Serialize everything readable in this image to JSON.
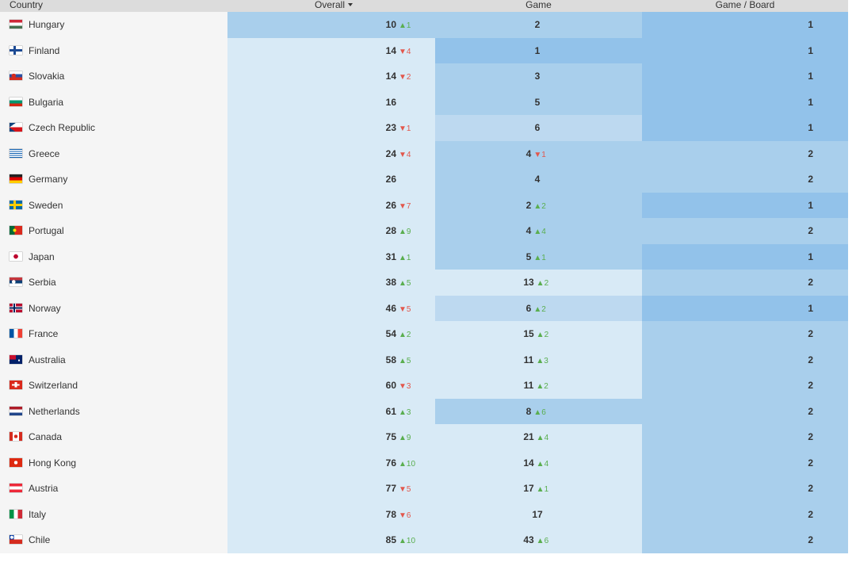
{
  "header": {
    "country": "Country",
    "overall": "Overall",
    "game": "Game",
    "board": "Game / Board"
  },
  "colors": {
    "up": "#5aae4f",
    "down": "#e2574c",
    "tier1": "#d8eaf6",
    "tier2": "#bdd9f0",
    "tier3": "#a9cfec",
    "tier4": "#92c2ea"
  },
  "rows": [
    {
      "country": "Hungary",
      "flag": "hungary-flag-icon",
      "overall": "10",
      "overall_delta": "▲1",
      "overall_dir": "up",
      "game": "2",
      "game_delta": "",
      "game_dir": "",
      "board": "1"
    },
    {
      "country": "Finland",
      "flag": "finland-flag-icon",
      "overall": "14",
      "overall_delta": "▼4",
      "overall_dir": "down",
      "game": "1",
      "game_delta": "",
      "game_dir": "",
      "board": "1"
    },
    {
      "country": "Slovakia",
      "flag": "slovakia-flag-icon",
      "overall": "14",
      "overall_delta": "▼2",
      "overall_dir": "down",
      "game": "3",
      "game_delta": "",
      "game_dir": "",
      "board": "1"
    },
    {
      "country": "Bulgaria",
      "flag": "bulgaria-flag-icon",
      "overall": "16",
      "overall_delta": "",
      "overall_dir": "",
      "game": "5",
      "game_delta": "",
      "game_dir": "",
      "board": "1"
    },
    {
      "country": "Czech Republic",
      "flag": "czech-republic-flag-icon",
      "overall": "23",
      "overall_delta": "▼1",
      "overall_dir": "down",
      "game": "6",
      "game_delta": "",
      "game_dir": "",
      "board": "1"
    },
    {
      "country": "Greece",
      "flag": "greece-flag-icon",
      "overall": "24",
      "overall_delta": "▼4",
      "overall_dir": "down",
      "game": "4",
      "game_delta": "▼1",
      "game_dir": "down",
      "board": "2"
    },
    {
      "country": "Germany",
      "flag": "germany-flag-icon",
      "overall": "26",
      "overall_delta": "",
      "overall_dir": "",
      "game": "4",
      "game_delta": "",
      "game_dir": "",
      "board": "2"
    },
    {
      "country": "Sweden",
      "flag": "sweden-flag-icon",
      "overall": "26",
      "overall_delta": "▼7",
      "overall_dir": "down",
      "game": "2",
      "game_delta": "▲2",
      "game_dir": "up",
      "board": "1"
    },
    {
      "country": "Portugal",
      "flag": "portugal-flag-icon",
      "overall": "28",
      "overall_delta": "▲9",
      "overall_dir": "up",
      "game": "4",
      "game_delta": "▲4",
      "game_dir": "up",
      "board": "2"
    },
    {
      "country": "Japan",
      "flag": "japan-flag-icon",
      "overall": "31",
      "overall_delta": "▲1",
      "overall_dir": "up",
      "game": "5",
      "game_delta": "▲1",
      "game_dir": "up",
      "board": "1"
    },
    {
      "country": "Serbia",
      "flag": "serbia-flag-icon",
      "overall": "38",
      "overall_delta": "▲5",
      "overall_dir": "up",
      "game": "13",
      "game_delta": "▲2",
      "game_dir": "up",
      "board": "2"
    },
    {
      "country": "Norway",
      "flag": "norway-flag-icon",
      "overall": "46",
      "overall_delta": "▼5",
      "overall_dir": "down",
      "game": "6",
      "game_delta": "▲2",
      "game_dir": "up",
      "board": "1"
    },
    {
      "country": "France",
      "flag": "france-flag-icon",
      "overall": "54",
      "overall_delta": "▲2",
      "overall_dir": "up",
      "game": "15",
      "game_delta": "▲2",
      "game_dir": "up",
      "board": "2"
    },
    {
      "country": "Australia",
      "flag": "australia-flag-icon",
      "overall": "58",
      "overall_delta": "▲5",
      "overall_dir": "up",
      "game": "11",
      "game_delta": "▲3",
      "game_dir": "up",
      "board": "2"
    },
    {
      "country": "Switzerland",
      "flag": "switzerland-flag-icon",
      "overall": "60",
      "overall_delta": "▼3",
      "overall_dir": "down",
      "game": "11",
      "game_delta": "▲2",
      "game_dir": "up",
      "board": "2"
    },
    {
      "country": "Netherlands",
      "flag": "netherlands-flag-icon",
      "overall": "61",
      "overall_delta": "▲3",
      "overall_dir": "up",
      "game": "8",
      "game_delta": "▲6",
      "game_dir": "up",
      "board": "2"
    },
    {
      "country": "Canada",
      "flag": "canada-flag-icon",
      "overall": "75",
      "overall_delta": "▲9",
      "overall_dir": "up",
      "game": "21",
      "game_delta": "▲4",
      "game_dir": "up",
      "board": "2"
    },
    {
      "country": "Hong Kong",
      "flag": "hong-kong-flag-icon",
      "overall": "76",
      "overall_delta": "▲10",
      "overall_dir": "up",
      "game": "14",
      "game_delta": "▲4",
      "game_dir": "up",
      "board": "2"
    },
    {
      "country": "Austria",
      "flag": "austria-flag-icon",
      "overall": "77",
      "overall_delta": "▼5",
      "overall_dir": "down",
      "game": "17",
      "game_delta": "▲1",
      "game_dir": "up",
      "board": "2"
    },
    {
      "country": "Italy",
      "flag": "italy-flag-icon",
      "overall": "78",
      "overall_delta": "▼6",
      "overall_dir": "down",
      "game": "17",
      "game_delta": "",
      "game_dir": "",
      "board": "2"
    },
    {
      "country": "Chile",
      "flag": "chile-flag-icon",
      "overall": "85",
      "overall_delta": "▲10",
      "overall_dir": "up",
      "game": "43",
      "game_delta": "▲6",
      "game_dir": "up",
      "board": "2"
    }
  ]
}
